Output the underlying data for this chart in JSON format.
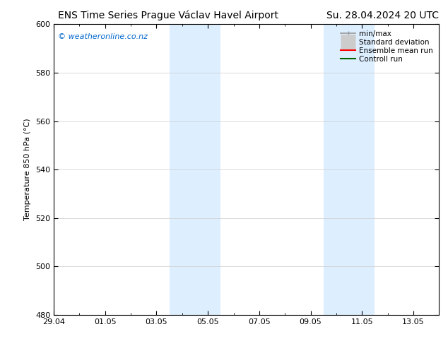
{
  "title_left": "ENS Time Series Prague Václav Havel Airport",
  "title_right": "Su. 28.04.2024 20 UTC",
  "ylabel": "Temperature 850 hPa (°C)",
  "watermark": "© weatheronline.co.nz",
  "watermark_color": "#0066cc",
  "background_color": "#ffffff",
  "plot_bg_color": "#ffffff",
  "ylim": [
    480,
    600
  ],
  "yticks": [
    480,
    500,
    520,
    540,
    560,
    580,
    600
  ],
  "xtick_labels": [
    "29.04",
    "01.05",
    "03.05",
    "05.05",
    "07.05",
    "09.05",
    "11.05",
    "13.05"
  ],
  "xtick_positions": [
    0,
    2,
    4,
    6,
    8,
    10,
    12,
    14
  ],
  "xlim": [
    0,
    15.0
  ],
  "shade_bands": [
    {
      "x_start": 4.5,
      "x_end": 6.5,
      "color": "#ddeeff"
    },
    {
      "x_start": 10.5,
      "x_end": 12.5,
      "color": "#ddeeff"
    }
  ],
  "legend_entries": [
    {
      "label": "min/max",
      "color": "#999999",
      "lw": 1.2,
      "style": "line_with_caps"
    },
    {
      "label": "Standard deviation",
      "color": "#cccccc",
      "lw": 5,
      "style": "thick_line"
    },
    {
      "label": "Ensemble mean run",
      "color": "#ff0000",
      "lw": 1.5,
      "style": "line"
    },
    {
      "label": "Controll run",
      "color": "#006600",
      "lw": 1.5,
      "style": "line"
    }
  ],
  "grid_color": "#cccccc",
  "tick_label_fontsize": 8,
  "title_fontsize": 10,
  "ylabel_fontsize": 8,
  "watermark_fontsize": 8,
  "legend_fontsize": 7.5
}
